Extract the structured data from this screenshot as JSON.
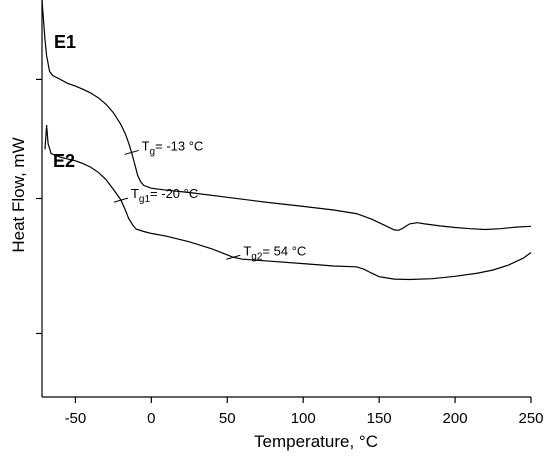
{
  "chart_data": {
    "type": "line",
    "title": "",
    "xlabel": "Temperature, °C",
    "ylabel": "Heat Flow, mW",
    "xlim": [
      -72,
      250
    ],
    "ylim": [
      0,
      100
    ],
    "x_ticks": [
      -50,
      0,
      50,
      100,
      150,
      200,
      250
    ],
    "y_ticks_unlabeled": [
      80,
      50,
      16
    ],
    "grid": false,
    "legend": "none",
    "series": [
      {
        "name": "E1",
        "points": [
          [
            -72,
            100
          ],
          [
            -71,
            95
          ],
          [
            -70,
            90
          ],
          [
            -69,
            86
          ],
          [
            -67,
            82
          ],
          [
            -65,
            81
          ],
          [
            -60,
            80
          ],
          [
            -55,
            79
          ],
          [
            -50,
            78.3
          ],
          [
            -45,
            77.5
          ],
          [
            -40,
            76.6
          ],
          [
            -35,
            75.4
          ],
          [
            -30,
            73.8
          ],
          [
            -25,
            71.6
          ],
          [
            -20,
            68.6
          ],
          [
            -17,
            66.2
          ],
          [
            -15,
            64
          ],
          [
            -13,
            61.6
          ],
          [
            -11,
            58.8
          ],
          [
            -9,
            55.8
          ],
          [
            -7,
            54.2
          ],
          [
            -5,
            53.3
          ],
          [
            0,
            52.6
          ],
          [
            10,
            52.1
          ],
          [
            25,
            51.5
          ],
          [
            50,
            50.3
          ],
          [
            75,
            49.1
          ],
          [
            100,
            48
          ],
          [
            120,
            47.1
          ],
          [
            135,
            46.2
          ],
          [
            145,
            44.8
          ],
          [
            155,
            43
          ],
          [
            160,
            42.1
          ],
          [
            163,
            42
          ],
          [
            166,
            42.6
          ],
          [
            170,
            43.6
          ],
          [
            175,
            43.9
          ],
          [
            180,
            43.6
          ],
          [
            190,
            43.1
          ],
          [
            200,
            42.7
          ],
          [
            210,
            42.4
          ],
          [
            220,
            42.2
          ],
          [
            230,
            42.4
          ],
          [
            240,
            42.8
          ],
          [
            250,
            43
          ]
        ]
      },
      {
        "name": "E2",
        "points": [
          [
            -70,
            62.4
          ],
          [
            -69,
            68.5
          ],
          [
            -68,
            63.8
          ],
          [
            -66,
            61.3
          ],
          [
            -60,
            60.4
          ],
          [
            -50,
            59.5
          ],
          [
            -45,
            58.8
          ],
          [
            -40,
            57.9
          ],
          [
            -35,
            56.6
          ],
          [
            -30,
            54.8
          ],
          [
            -25,
            52.3
          ],
          [
            -20,
            49.6
          ],
          [
            -17,
            47
          ],
          [
            -15,
            45
          ],
          [
            -12,
            43.2
          ],
          [
            -10,
            42.3
          ],
          [
            -5,
            41.7
          ],
          [
            0,
            41.2
          ],
          [
            10,
            40.5
          ],
          [
            25,
            39.1
          ],
          [
            40,
            37.3
          ],
          [
            54,
            35.2
          ],
          [
            60,
            34.7
          ],
          [
            75,
            34.3
          ],
          [
            100,
            33.6
          ],
          [
            120,
            33
          ],
          [
            135,
            32.8
          ],
          [
            140,
            32.2
          ],
          [
            145,
            31.2
          ],
          [
            150,
            30.3
          ],
          [
            160,
            29.7
          ],
          [
            170,
            29.6
          ],
          [
            185,
            29.8
          ],
          [
            200,
            30.4
          ],
          [
            215,
            31.2
          ],
          [
            225,
            32
          ],
          [
            235,
            33.2
          ],
          [
            245,
            35
          ],
          [
            250,
            36.4
          ]
        ]
      }
    ],
    "annotations": [
      {
        "main": "T",
        "sub": "g",
        "rest": "= -13 °C",
        "x": -13,
        "series": 0
      },
      {
        "main": "T",
        "sub": "g1",
        "rest": "= -20 °C",
        "x": -20,
        "series": 1
      },
      {
        "main": "T",
        "sub": "g2",
        "rest": "=  54 °C",
        "x": 54,
        "series": 1
      }
    ]
  }
}
